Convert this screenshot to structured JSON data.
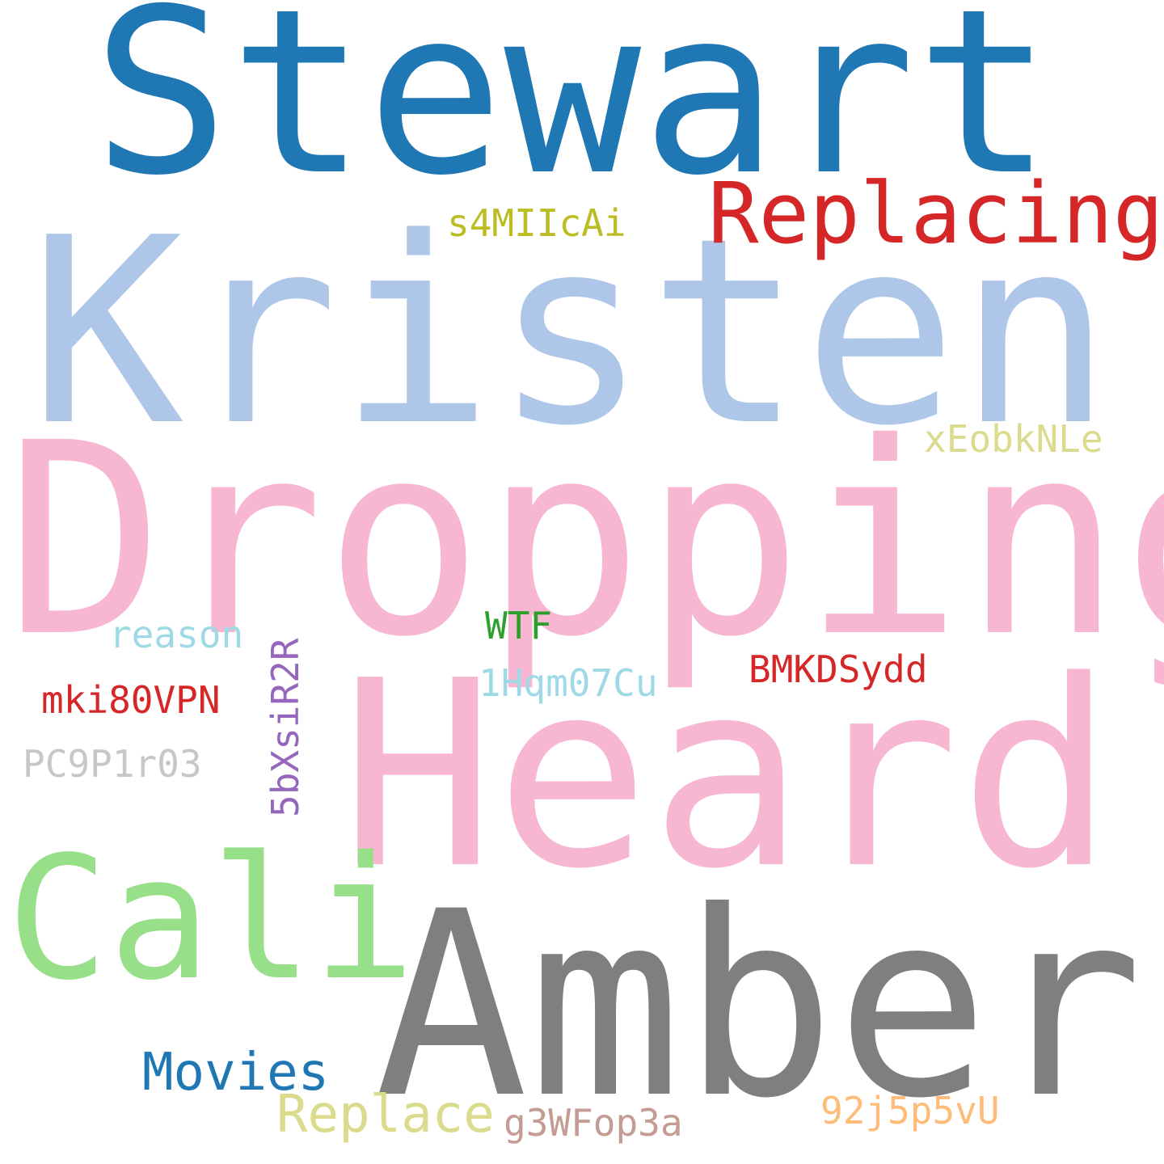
{
  "words": [
    {
      "id": "stewart",
      "text": "Stewart",
      "color": "#1f77b4"
    },
    {
      "id": "kristen",
      "text": "Kristen",
      "color": "#aec7e8"
    },
    {
      "id": "replacing",
      "text": "Replacing",
      "color": "#d62728"
    },
    {
      "id": "s4miicai",
      "text": "s4MIIcAi",
      "color": "#bcbd22"
    },
    {
      "id": "dropping",
      "text": "Dropping",
      "color": "#f7b6d2"
    },
    {
      "id": "xeobknle",
      "text": "xEobkNLe",
      "color": "#dbdb8d"
    },
    {
      "id": "heard",
      "text": "Heard",
      "color": "#f7b6d2"
    },
    {
      "id": "reason",
      "text": "reason",
      "color": "#9edae5"
    },
    {
      "id": "wtf",
      "text": "WTF",
      "color": "#2ca02c"
    },
    {
      "id": "5bxsir2r",
      "text": "5bXsiR2R",
      "color": "#9467bd"
    },
    {
      "id": "bmkdsydd",
      "text": "BMKDSydd",
      "color": "#d62728"
    },
    {
      "id": "1hqm07cu",
      "text": "1Hqm07Cu",
      "color": "#9edae5"
    },
    {
      "id": "mki80vpn",
      "text": "mki80VPN",
      "color": "#d62728"
    },
    {
      "id": "pc9p1r03",
      "text": "PC9P1r03",
      "color": "#c7c7c7"
    },
    {
      "id": "cali",
      "text": "Cali",
      "color": "#98df8a"
    },
    {
      "id": "amber",
      "text": "Amber",
      "color": "#7f7f7f"
    },
    {
      "id": "movies",
      "text": "Movies",
      "color": "#1f77b4"
    },
    {
      "id": "replace",
      "text": "Replace",
      "color": "#dbdb8d"
    },
    {
      "id": "g3wfop3a",
      "text": "g3WFop3a",
      "color": "#c49c94"
    },
    {
      "id": "92j5p5vu",
      "text": "92j5p5vU",
      "color": "#ffbb78"
    }
  ]
}
